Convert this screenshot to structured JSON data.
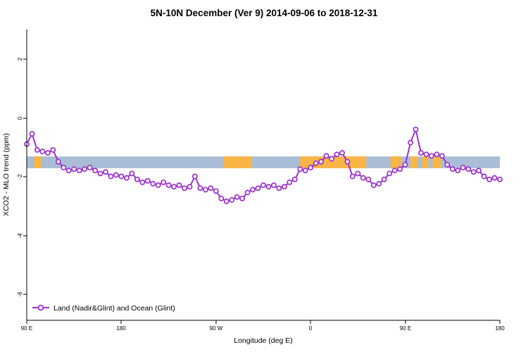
{
  "title": "5N-10N December (Ver 9)   2014-09-06 to 2018-12-31",
  "chart_data": {
    "type": "line",
    "title": "5N-10N December (Ver 9)   2014-09-06 to 2018-12-31",
    "xlabel": "Longitude (deg E)",
    "ylabel": "XCO2 - MLO trend (ppm)",
    "x_axis_note": "longitude axis wraps around the globe: spans 450 deg starting at 90E",
    "xlim": [
      90,
      540
    ],
    "ylim": [
      -6.9,
      3.0
    ],
    "grid": false,
    "x_ticks": [
      {
        "pos": 90,
        "label": "90 E"
      },
      {
        "pos": 180,
        "label": "180"
      },
      {
        "pos": 270,
        "label": "90 W"
      },
      {
        "pos": 360,
        "label": "0"
      },
      {
        "pos": 450,
        "label": "90 E"
      },
      {
        "pos": 540,
        "label": "180"
      }
    ],
    "y_ticks": [
      {
        "pos": 2,
        "label": "2"
      },
      {
        "pos": 0,
        "label": "0"
      },
      {
        "pos": -2,
        "label": "-2"
      },
      {
        "pos": -4,
        "label": "-4"
      },
      {
        "pos": -6,
        "label": "-6"
      }
    ],
    "band": {
      "meaning": "5N-10N latitude strip map: ocean blue, land orange",
      "y_from": -1.32,
      "y_to": -1.72,
      "ocean_color": "#a9bdd6",
      "land_color": "#f9b545",
      "land_segments": [
        [
          97,
          104
        ],
        [
          277,
          304
        ],
        [
          350,
          413
        ],
        [
          436,
          446
        ],
        [
          455,
          462
        ],
        [
          466,
          472
        ],
        [
          476,
          484
        ]
      ]
    },
    "series": [
      {
        "name": "Land (Nadir&Glint) and Ocean (Glint)",
        "color": "#9b30d0",
        "marker": "open-circle",
        "x": [
          90,
          95,
          100,
          105,
          110,
          115,
          120,
          125,
          130,
          135,
          140,
          145,
          150,
          155,
          160,
          165,
          170,
          175,
          180,
          185,
          190,
          195,
          200,
          205,
          210,
          215,
          220,
          225,
          230,
          235,
          240,
          245,
          250,
          255,
          260,
          265,
          270,
          275,
          280,
          285,
          290,
          295,
          300,
          305,
          310,
          315,
          320,
          325,
          330,
          335,
          340,
          345,
          350,
          355,
          360,
          365,
          370,
          375,
          380,
          385,
          390,
          395,
          400,
          405,
          410,
          415,
          420,
          425,
          430,
          435,
          440,
          445,
          450,
          455,
          460,
          465,
          470,
          475,
          480,
          485,
          490,
          495,
          500,
          505,
          510,
          515,
          520,
          525,
          530,
          535,
          540
        ],
        "y": [
          -0.9,
          -0.55,
          -1.1,
          -1.15,
          -1.2,
          -1.1,
          -1.5,
          -1.7,
          -1.8,
          -1.75,
          -1.8,
          -1.75,
          -1.7,
          -1.8,
          -1.9,
          -1.85,
          -2.0,
          -1.95,
          -2.0,
          -2.05,
          -1.9,
          -2.1,
          -2.2,
          -2.15,
          -2.25,
          -2.3,
          -2.2,
          -2.3,
          -2.35,
          -2.3,
          -2.4,
          -2.35,
          -2.0,
          -2.4,
          -2.45,
          -2.4,
          -2.5,
          -2.75,
          -2.85,
          -2.8,
          -2.7,
          -2.75,
          -2.55,
          -2.45,
          -2.4,
          -2.3,
          -2.35,
          -2.3,
          -2.4,
          -2.35,
          -2.2,
          -2.1,
          -1.75,
          -1.8,
          -1.7,
          -1.55,
          -1.5,
          -1.3,
          -1.4,
          -1.25,
          -1.2,
          -1.5,
          -2.0,
          -1.9,
          -2.05,
          -2.1,
          -2.3,
          -2.25,
          -2.1,
          -1.9,
          -1.8,
          -1.75,
          -1.6,
          -0.85,
          -0.4,
          -1.2,
          -1.25,
          -1.3,
          -1.25,
          -1.3,
          -1.6,
          -1.75,
          -1.8,
          -1.7,
          -1.75,
          -1.85,
          -1.8,
          -2.0,
          -2.1,
          -2.05,
          -2.1
        ]
      }
    ],
    "legend": {
      "position": "bottom-left",
      "entries": [
        "Land (Nadir&Glint) and Ocean (Glint)"
      ]
    }
  },
  "colors": {
    "axis": "#000000",
    "line": "#9b30d0",
    "marker_fill": "#ffffff",
    "band_ocean": "#a9bdd6",
    "band_land": "#f9b545"
  }
}
